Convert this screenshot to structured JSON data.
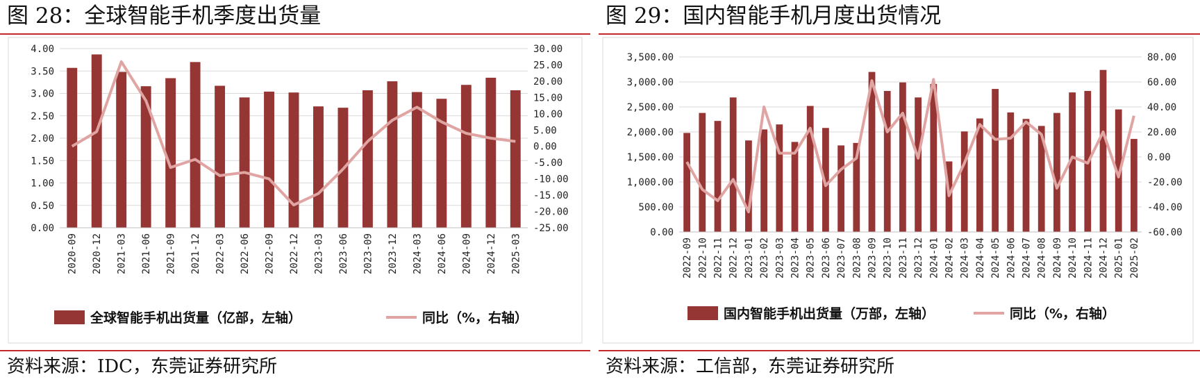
{
  "left": {
    "title": "图 28：全球智能手机季度出货量",
    "source": "资料来源：IDC，东莞证券研究所",
    "legend_bar": "全球智能手机出货量（亿部，左轴）",
    "legend_line": "同比（%，右轴）"
  },
  "right": {
    "title": "图 29：国内智能手机月度出货情况",
    "source": "资料来源：工信部，东莞证券研究所",
    "legend_bar": "国内智能手机出货量（万部，左轴）",
    "legend_line": "同比（%，右轴）"
  },
  "colors": {
    "bar": "#963634",
    "line": "#e0a5a3",
    "rule": "#c0282b",
    "grid": "#d9d9d9"
  },
  "chart_data": [
    {
      "type": "bar",
      "categories": [
        "2020-09",
        "2020-12",
        "2021-03",
        "2021-06",
        "2021-09",
        "2021-12",
        "2022-03",
        "2022-06",
        "2022-09",
        "2022-12",
        "2023-03",
        "2023-06",
        "2023-09",
        "2023-12",
        "2024-03",
        "2024-06",
        "2024-09",
        "2024-12",
        "2025-03"
      ],
      "series": [
        {
          "name": "全球智能手机出货量（亿部，左轴）",
          "type": "bar",
          "axis": "left",
          "values": [
            3.57,
            3.87,
            3.48,
            3.16,
            3.34,
            3.7,
            3.17,
            2.91,
            3.04,
            3.02,
            2.71,
            2.68,
            3.07,
            3.27,
            3.03,
            2.88,
            3.19,
            3.35,
            3.07
          ]
        },
        {
          "name": "同比（%，右轴）",
          "type": "line",
          "axis": "right",
          "values": [
            0.0,
            4.5,
            26.0,
            14.0,
            -6.5,
            -4.0,
            -9.0,
            -8.0,
            -10.0,
            -18.0,
            -14.5,
            -7.0,
            1.5,
            8.0,
            12.0,
            7.5,
            4.0,
            2.5,
            1.5
          ]
        }
      ],
      "y_left": {
        "ticks": [
          "4.00",
          "3.50",
          "3.00",
          "2.50",
          "2.00",
          "1.50",
          "1.00",
          "0.50",
          "0.00"
        ],
        "lim": [
          0,
          4
        ]
      },
      "y_right": {
        "ticks": [
          "30.00",
          "25.00",
          "20.00",
          "15.00",
          "10.00",
          "5.00",
          "0.00",
          "-5.00",
          "-10.00",
          "-15.00",
          "-20.00",
          "-25.00"
        ],
        "lim": [
          -25,
          30
        ]
      },
      "grid": true,
      "legend": "bottom"
    },
    {
      "type": "bar",
      "categories": [
        "2022-09",
        "2022-10",
        "2022-11",
        "2022-12",
        "2023-01",
        "2023-02",
        "2023-03",
        "2023-04",
        "2023-05",
        "2023-06",
        "2023-07",
        "2023-08",
        "2023-09",
        "2023-10",
        "2023-11",
        "2023-12",
        "2024-01",
        "2024-02",
        "2024-03",
        "2024-04",
        "2024-05",
        "2024-06",
        "2024-07",
        "2024-08",
        "2024-09",
        "2024-10",
        "2024-11",
        "2024-12",
        "2025-01",
        "2025-02"
      ],
      "series": [
        {
          "name": "国内智能手机出货量（万部，左轴）",
          "type": "bar",
          "axis": "left",
          "values": [
            1980,
            2380,
            2220,
            2690,
            1830,
            2050,
            2150,
            1800,
            2520,
            2080,
            1730,
            1780,
            3200,
            2820,
            2990,
            2690,
            2960,
            1410,
            2010,
            2270,
            2860,
            2390,
            2260,
            2120,
            2380,
            2790,
            2820,
            3240,
            2450,
            1860
          ]
        },
        {
          "name": "同比（%，右轴）",
          "type": "line",
          "axis": "right",
          "values": [
            -4.0,
            -26.0,
            -35.0,
            -18.0,
            -44.0,
            40.0,
            3.0,
            3.0,
            23.0,
            -23.0,
            -10.0,
            -1.0,
            61.0,
            20.0,
            35.0,
            -1.0,
            62.0,
            -31.0,
            -5.0,
            26.0,
            14.0,
            15.0,
            28.0,
            18.0,
            -25.0,
            0.0,
            -5.0,
            20.0,
            -16.0,
            33.0
          ]
        }
      ],
      "y_left": {
        "ticks": [
          "3,500.00",
          "3,000.00",
          "2,500.00",
          "2,000.00",
          "1,500.00",
          "1,000.00",
          "500.00",
          "0.00"
        ],
        "lim": [
          0,
          3500
        ]
      },
      "y_right": {
        "ticks": [
          "80.00",
          "60.00",
          "40.00",
          "20.00",
          "0.00",
          "-20.00",
          "-40.00",
          "-60.00"
        ],
        "lim": [
          -60,
          80
        ]
      },
      "grid": true,
      "legend": "bottom"
    }
  ]
}
